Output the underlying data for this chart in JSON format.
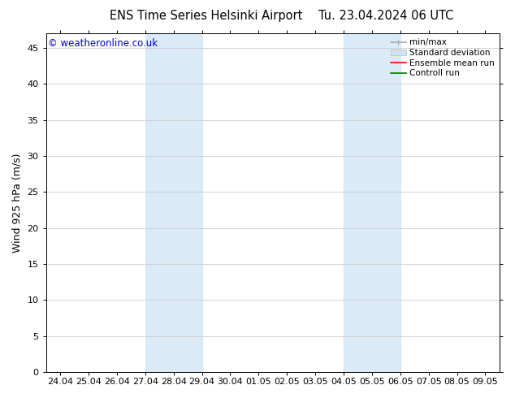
{
  "title_left": "ENS Time Series Helsinki Airport",
  "title_right": "Tu. 23.04.2024 06 UTC",
  "ylabel": "Wind 925 hPa (m/s)",
  "watermark": "© weatheronline.co.uk",
  "watermark_color": "#0000cc",
  "ylim": [
    0,
    47
  ],
  "yticks": [
    0,
    5,
    10,
    15,
    20,
    25,
    30,
    35,
    40,
    45
  ],
  "bg_color": "#ffffff",
  "plot_bg_color": "#ffffff",
  "shaded_regions": [
    {
      "x_start_label": "27.04",
      "x_end_label": "29.04",
      "color": "#daeaf7"
    },
    {
      "x_start_label": "04.05",
      "x_end_label": "06.05",
      "color": "#daeaf7"
    }
  ],
  "x_tick_labels": [
    "24.04",
    "25.04",
    "26.04",
    "27.04",
    "28.04",
    "29.04",
    "30.04",
    "01.05",
    "02.05",
    "03.05",
    "04.05",
    "05.05",
    "06.05",
    "07.05",
    "08.05",
    "09.05"
  ],
  "x_tick_positions": [
    0,
    1,
    2,
    3,
    4,
    5,
    6,
    7,
    8,
    9,
    10,
    11,
    12,
    13,
    14,
    15
  ],
  "xlim": [
    -0.5,
    15.5
  ],
  "legend_items": [
    {
      "label": "min/max",
      "color": "#aaaaaa",
      "type": "errorbar"
    },
    {
      "label": "Standard deviation",
      "color": "#d0e4f0",
      "type": "fill"
    },
    {
      "label": "Ensemble mean run",
      "color": "#ff0000",
      "type": "line"
    },
    {
      "label": "Controll run",
      "color": "#007700",
      "type": "line"
    }
  ],
  "font_family": "DejaVu Sans",
  "title_fontsize": 10.5,
  "axis_label_fontsize": 9,
  "tick_fontsize": 8,
  "legend_fontsize": 7.5,
  "watermark_fontsize": 8.5,
  "grid_color": "#cccccc",
  "spine_color": "#000000"
}
